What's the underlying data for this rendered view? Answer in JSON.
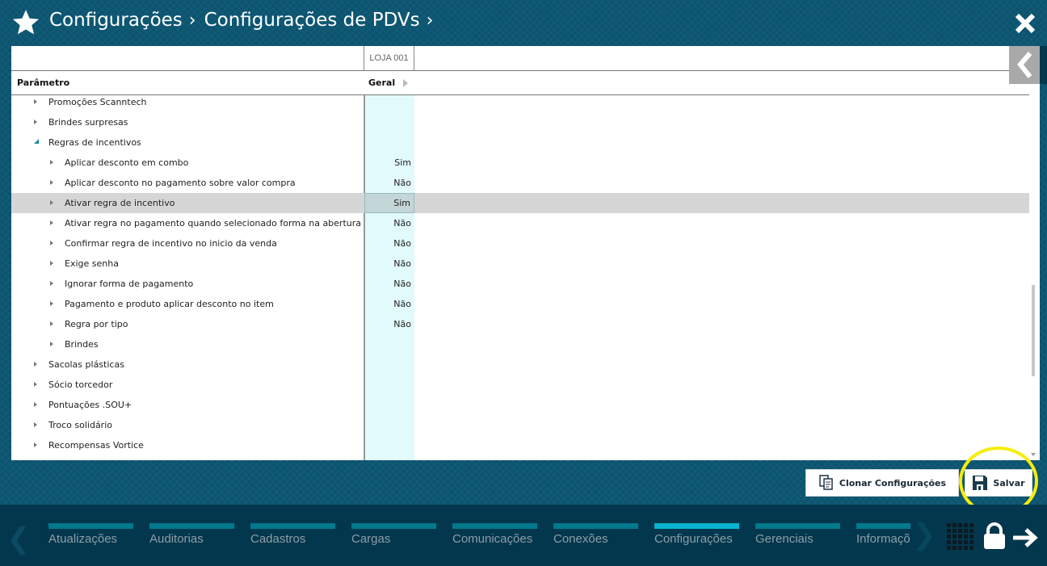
{
  "header": {
    "breadcrumb": [
      "Configurações",
      "Configurações de PDVs"
    ],
    "star_icon": "star-icon",
    "close_icon": "close-icon"
  },
  "table": {
    "column_group": "LOJA 001",
    "param_header": "Parâmetro",
    "value_header": "Geral",
    "rows": [
      {
        "label": "Promoções Scanntech",
        "level": 1,
        "expanded": false,
        "value": ""
      },
      {
        "label": "Brindes surpresas",
        "level": 1,
        "expanded": false,
        "value": ""
      },
      {
        "label": "Regras de incentivos",
        "level": 1,
        "expanded": true,
        "value": ""
      },
      {
        "label": "Aplicar desconto em combo",
        "level": 2,
        "expanded": false,
        "value": "Sim"
      },
      {
        "label": "Aplicar desconto no pagamento sobre valor compra",
        "level": 2,
        "expanded": false,
        "value": "Não"
      },
      {
        "label": "Ativar regra de incentivo",
        "level": 2,
        "expanded": false,
        "value": "Sim",
        "selected": true
      },
      {
        "label": "Ativar regra no pagamento quando selecionado forma na abertura",
        "level": 2,
        "expanded": false,
        "value": "Não"
      },
      {
        "label": "Confirmar regra de incentivo no inicio da venda",
        "level": 2,
        "expanded": false,
        "value": "Não"
      },
      {
        "label": "Exige senha",
        "level": 2,
        "expanded": false,
        "value": "Não"
      },
      {
        "label": "Ignorar forma de pagamento",
        "level": 2,
        "expanded": false,
        "value": "Não"
      },
      {
        "label": "Pagamento e produto aplicar desconto no item",
        "level": 2,
        "expanded": false,
        "value": "Não"
      },
      {
        "label": "Regra por tipo",
        "level": 2,
        "expanded": false,
        "value": "Não"
      },
      {
        "label": "Brindes",
        "level": 2,
        "expanded": false,
        "value": ""
      },
      {
        "label": "Sacolas plásticas",
        "level": 1,
        "expanded": false,
        "value": ""
      },
      {
        "label": "Sócio torcedor",
        "level": 1,
        "expanded": false,
        "value": ""
      },
      {
        "label": "Pontuações .SOU+",
        "level": 1,
        "expanded": false,
        "value": ""
      },
      {
        "label": "Troco solidário",
        "level": 1,
        "expanded": false,
        "value": ""
      },
      {
        "label": "Recompensas Vortice",
        "level": 1,
        "expanded": false,
        "value": ""
      }
    ]
  },
  "actions": {
    "clone_label": "Clonar Configurações",
    "save_label": "Salvar"
  },
  "nav": {
    "tabs": [
      {
        "label": "Atualizações"
      },
      {
        "label": "Auditorias"
      },
      {
        "label": "Cadastros"
      },
      {
        "label": "Cargas"
      },
      {
        "label": "Comunicações"
      },
      {
        "label": "Conexões"
      },
      {
        "label": "Configurações",
        "active": true
      },
      {
        "label": "Gerenciais"
      },
      {
        "label": "Informações"
      }
    ]
  },
  "colors": {
    "background": "#0b5470",
    "bottom_bar": "#03374d",
    "tab_bar": "#007a8c",
    "tab_active": "#0ab3cf",
    "highlight_ring": "#f4ee0a"
  }
}
